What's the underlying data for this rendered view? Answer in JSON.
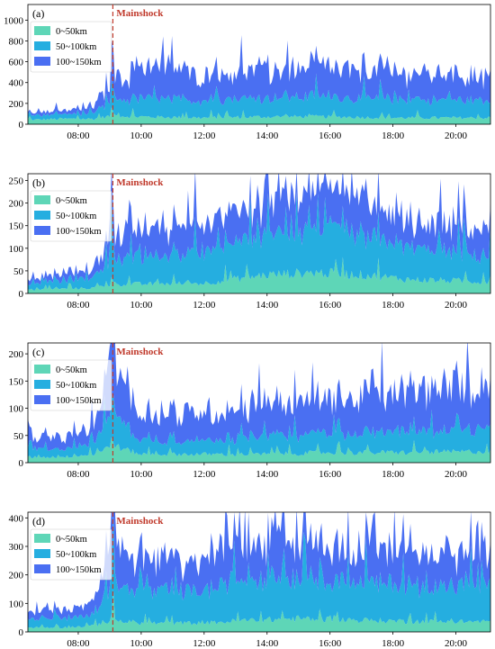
{
  "figure": {
    "mainshock_label": "Mainshock",
    "legend": [
      "0~50km",
      "50~100km",
      "100~150km"
    ],
    "colors": [
      "#5ed6b7",
      "#25aee0",
      "#4a6ff2"
    ],
    "mainshock_color": "#c0392b"
  },
  "chart_data": [
    {
      "type": "area",
      "panel_label": "(a)",
      "xlim": [
        6.4,
        21.1
      ],
      "xticks": [
        "08:00",
        "10:00",
        "12:00",
        "14:00",
        "16:00",
        "18:00",
        "20:00"
      ],
      "ylim": [
        0,
        1150
      ],
      "yticks": [
        0,
        200,
        400,
        600,
        800,
        1000
      ],
      "mainshock_time": 9.1,
      "stacked": true,
      "series": [
        {
          "name": "0~50km",
          "x": [
            6.4,
            7.5,
            8.5,
            9.1,
            10,
            12,
            14,
            16,
            18,
            21.1
          ],
          "values": [
            40,
            50,
            50,
            80,
            70,
            60,
            70,
            70,
            60,
            60
          ]
        },
        {
          "name": "50~100km",
          "x": [
            6.4,
            7.5,
            8.5,
            9.1,
            10,
            12,
            14,
            16,
            18,
            21.1
          ],
          "values": [
            40,
            40,
            50,
            140,
            170,
            160,
            180,
            190,
            170,
            160
          ]
        },
        {
          "name": "100~150km",
          "x": [
            6.4,
            7.5,
            8.5,
            9.1,
            10,
            12,
            14,
            16,
            18,
            21.1
          ],
          "values": [
            30,
            30,
            60,
            180,
            300,
            240,
            250,
            260,
            240,
            230
          ]
        }
      ]
    },
    {
      "type": "area",
      "panel_label": "(b)",
      "xlim": [
        6.4,
        21.1
      ],
      "xticks": [
        "08:00",
        "10:00",
        "12:00",
        "14:00",
        "16:00",
        "18:00",
        "20:00"
      ],
      "ylim": [
        0,
        265
      ],
      "yticks": [
        0,
        50,
        100,
        150,
        200,
        250
      ],
      "mainshock_time": 9.1,
      "stacked": true,
      "series": [
        {
          "name": "0~50km",
          "x": [
            6.4,
            7.5,
            8.5,
            9.1,
            10,
            12,
            14,
            15.5,
            17,
            18.5,
            21.1
          ],
          "values": [
            8,
            10,
            12,
            20,
            20,
            22,
            40,
            45,
            40,
            30,
            25
          ]
        },
        {
          "name": "50~100km",
          "x": [
            6.4,
            7.5,
            8.5,
            9.1,
            10,
            12,
            14,
            15.5,
            17,
            18.5,
            21.1
          ],
          "values": [
            12,
            15,
            22,
            55,
            55,
            65,
            85,
            95,
            85,
            70,
            55
          ]
        },
        {
          "name": "100~150km",
          "x": [
            6.4,
            7.5,
            8.5,
            9.1,
            10,
            12,
            14,
            15.5,
            17,
            18.5,
            21.1
          ],
          "values": [
            10,
            12,
            20,
            45,
            50,
            60,
            70,
            80,
            70,
            60,
            50
          ]
        }
      ]
    },
    {
      "type": "area",
      "panel_label": "(c)",
      "xlim": [
        6.4,
        21.1
      ],
      "xticks": [
        "08:00",
        "10:00",
        "12:00",
        "14:00",
        "16:00",
        "18:00",
        "20:00"
      ],
      "ylim": [
        0,
        220
      ],
      "yticks": [
        0,
        50,
        100,
        150,
        200
      ],
      "mainshock_time": 9.1,
      "stacked": true,
      "series": [
        {
          "name": "0~50km",
          "x": [
            6.4,
            7.5,
            8.5,
            9.1,
            10,
            12,
            14,
            16,
            18,
            21.1
          ],
          "values": [
            10,
            10,
            15,
            30,
            15,
            15,
            15,
            18,
            18,
            20
          ]
        },
        {
          "name": "50~100km",
          "x": [
            6.4,
            7.5,
            8.5,
            9.1,
            10,
            12,
            14,
            16,
            18,
            21.1
          ],
          "values": [
            15,
            15,
            20,
            60,
            25,
            25,
            30,
            35,
            35,
            40
          ]
        },
        {
          "name": "100~150km",
          "x": [
            6.4,
            7.5,
            8.5,
            9.1,
            10,
            12,
            14,
            16,
            18,
            21.1
          ],
          "values": [
            20,
            20,
            25,
            100,
            45,
            50,
            55,
            60,
            65,
            80
          ]
        }
      ]
    },
    {
      "type": "area",
      "panel_label": "(d)",
      "xlim": [
        6.4,
        21.1
      ],
      "xticks": [
        "08:00",
        "10:00",
        "12:00",
        "14:00",
        "16:00",
        "18:00",
        "20:00"
      ],
      "ylim": [
        0,
        420
      ],
      "yticks": [
        0,
        100,
        200,
        300,
        400
      ],
      "mainshock_time": 9.1,
      "stacked": true,
      "series": [
        {
          "name": "0~50km",
          "x": [
            6.4,
            7.5,
            8.5,
            9.1,
            10,
            12,
            13.5,
            15,
            17,
            19,
            21.1
          ],
          "values": [
            15,
            15,
            20,
            40,
            30,
            30,
            40,
            45,
            40,
            35,
            35
          ]
        },
        {
          "name": "50~100km",
          "x": [
            6.4,
            7.5,
            8.5,
            9.1,
            10,
            12,
            13.5,
            15,
            17,
            19,
            21.1
          ],
          "values": [
            30,
            30,
            40,
            130,
            100,
            110,
            140,
            145,
            130,
            120,
            120
          ]
        },
        {
          "name": "100~150km",
          "x": [
            6.4,
            7.5,
            8.5,
            9.1,
            10,
            12,
            13.5,
            15,
            17,
            19,
            21.1
          ],
          "values": [
            25,
            25,
            40,
            150,
            90,
            110,
            130,
            120,
            110,
            100,
            100
          ]
        }
      ]
    }
  ]
}
